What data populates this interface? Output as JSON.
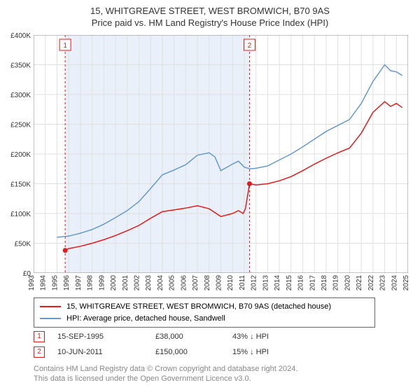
{
  "title": {
    "main": "15, WHITGREAVE STREET, WEST BROMWICH, B70 9AS",
    "sub": "Price paid vs. HM Land Registry's House Price Index (HPI)"
  },
  "chart": {
    "type": "line",
    "background_color": "#ffffff",
    "grid_color": "#e0e0e0",
    "shaded_band_color": "#e9f0f9",
    "shaded_band_x": [
      1995.7,
      2011.45
    ],
    "x_axis": {
      "min": 1993,
      "max": 2025,
      "ticks": [
        1993,
        1994,
        1995,
        1996,
        1997,
        1998,
        1999,
        2000,
        2001,
        2002,
        2003,
        2004,
        2005,
        2006,
        2007,
        2008,
        2009,
        2010,
        2011,
        2012,
        2013,
        2014,
        2015,
        2016,
        2017,
        2018,
        2019,
        2020,
        2021,
        2022,
        2023,
        2024,
        2025
      ],
      "label_fontsize": 10,
      "label_color": "#333333",
      "label_rotation": -90
    },
    "y_axis": {
      "min": 0,
      "max": 400000,
      "ticks": [
        0,
        50000,
        100000,
        150000,
        200000,
        250000,
        300000,
        350000,
        400000
      ],
      "tick_labels": [
        "£0",
        "£50K",
        "£100K",
        "£150K",
        "£200K",
        "£250K",
        "£300K",
        "£350K",
        "£400K"
      ],
      "label_fontsize": 10,
      "label_color": "#333333"
    },
    "marker_lines": [
      {
        "x": 1995.7,
        "label": "1",
        "color": "#e21b1b"
      },
      {
        "x": 2011.45,
        "label": "2",
        "color": "#e21b1b"
      }
    ],
    "series": [
      {
        "name": "price_paid",
        "color": "#e21b1b",
        "line_width": 1.5,
        "points": [
          [
            1995.7,
            38000
          ],
          [
            1996,
            41000
          ],
          [
            1997,
            45000
          ],
          [
            1998,
            50000
          ],
          [
            1999,
            56000
          ],
          [
            2000,
            63000
          ],
          [
            2001,
            71000
          ],
          [
            2002,
            80000
          ],
          [
            2003,
            92000
          ],
          [
            2004,
            103000
          ],
          [
            2005,
            106000
          ],
          [
            2006,
            109000
          ],
          [
            2007,
            113000
          ],
          [
            2008,
            108000
          ],
          [
            2009,
            95000
          ],
          [
            2010,
            100000
          ],
          [
            2010.5,
            105000
          ],
          [
            2010.9,
            100000
          ],
          [
            2011.1,
            108000
          ],
          [
            2011.45,
            150000
          ],
          [
            2012,
            148000
          ],
          [
            2013,
            150000
          ],
          [
            2014,
            155000
          ],
          [
            2015,
            162000
          ],
          [
            2016,
            172000
          ],
          [
            2017,
            183000
          ],
          [
            2018,
            193000
          ],
          [
            2019,
            202000
          ],
          [
            2020,
            210000
          ],
          [
            2021,
            235000
          ],
          [
            2022,
            270000
          ],
          [
            2023,
            288000
          ],
          [
            2023.5,
            280000
          ],
          [
            2024,
            285000
          ],
          [
            2024.5,
            278000
          ]
        ]
      },
      {
        "name": "hpi",
        "color": "#6699cc",
        "line_width": 1.5,
        "points": [
          [
            1995,
            60000
          ],
          [
            1996,
            62000
          ],
          [
            1997,
            67000
          ],
          [
            1998,
            73000
          ],
          [
            1999,
            82000
          ],
          [
            2000,
            93000
          ],
          [
            2001,
            105000
          ],
          [
            2002,
            120000
          ],
          [
            2003,
            142000
          ],
          [
            2004,
            165000
          ],
          [
            2005,
            173000
          ],
          [
            2006,
            182000
          ],
          [
            2007,
            198000
          ],
          [
            2008,
            202000
          ],
          [
            2008.5,
            195000
          ],
          [
            2009,
            172000
          ],
          [
            2010,
            183000
          ],
          [
            2010.5,
            188000
          ],
          [
            2011,
            178000
          ],
          [
            2011.5,
            175000
          ],
          [
            2012,
            176000
          ],
          [
            2013,
            180000
          ],
          [
            2014,
            190000
          ],
          [
            2015,
            200000
          ],
          [
            2016,
            212000
          ],
          [
            2017,
            225000
          ],
          [
            2018,
            238000
          ],
          [
            2019,
            248000
          ],
          [
            2020,
            258000
          ],
          [
            2021,
            285000
          ],
          [
            2022,
            322000
          ],
          [
            2023,
            350000
          ],
          [
            2023.5,
            340000
          ],
          [
            2024,
            338000
          ],
          [
            2024.5,
            332000
          ]
        ]
      }
    ]
  },
  "legend": {
    "items": [
      {
        "color": "#e21b1b",
        "label": "15, WHITGREAVE STREET, WEST BROMWICH, B70 9AS (detached house)"
      },
      {
        "color": "#6699cc",
        "label": "HPI: Average price, detached house, Sandwell"
      }
    ]
  },
  "markers": [
    {
      "num": "1",
      "date": "15-SEP-1995",
      "price": "£38,000",
      "pct": "43% ↓ HPI"
    },
    {
      "num": "2",
      "date": "10-JUN-2011",
      "price": "£150,000",
      "pct": "15% ↓ HPI"
    }
  ],
  "footer": {
    "line1": "Contains HM Land Registry data © Crown copyright and database right 2024.",
    "line2": "This data is licensed under the Open Government Licence v3.0."
  }
}
